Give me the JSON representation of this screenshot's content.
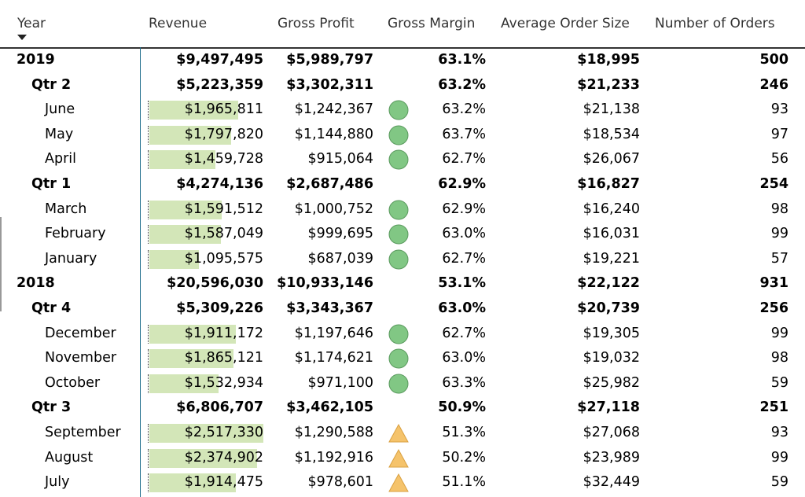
{
  "headers": {
    "year": "Year",
    "revenue": "Revenue",
    "gross_profit": "Gross Profit",
    "gross_margin": "Gross Margin",
    "average_order_size": "Average Order Size",
    "number_of_orders": "Number of Orders"
  },
  "sort_indicator": "sort-descending-icon",
  "colors": {
    "databar": "#d3e6b8",
    "kpi_good": "#81c784",
    "kpi_warning": "#f5c36b",
    "divider": "#1f6e8c"
  },
  "revenue_bar_max": 2517330,
  "rows": [
    {
      "label": "2019",
      "level": 0,
      "bold": true,
      "revenue": "$9,497,495",
      "gross_profit": "$5,989,797",
      "gross_margin": "63.1%",
      "average_order_size": "$18,995",
      "orders": "500"
    },
    {
      "label": "Qtr 2",
      "level": 1,
      "bold": true,
      "revenue": "$5,223,359",
      "gross_profit": "$3,302,311",
      "gross_margin": "63.2%",
      "average_order_size": "$21,233",
      "orders": "246"
    },
    {
      "label": "June",
      "level": 2,
      "bold": false,
      "revenue": "$1,965,811",
      "revenue_value": 1965811,
      "gross_profit": "$1,242,367",
      "kpi": "good-circle-icon",
      "gross_margin": "63.2%",
      "average_order_size": "$21,138",
      "orders": "93"
    },
    {
      "label": "May",
      "level": 2,
      "bold": false,
      "revenue": "$1,797,820",
      "revenue_value": 1797820,
      "gross_profit": "$1,144,880",
      "kpi": "good-circle-icon",
      "gross_margin": "63.7%",
      "average_order_size": "$18,534",
      "orders": "97"
    },
    {
      "label": "April",
      "level": 2,
      "bold": false,
      "revenue": "$1,459,728",
      "revenue_value": 1459728,
      "gross_profit": "$915,064",
      "kpi": "good-circle-icon",
      "gross_margin": "62.7%",
      "average_order_size": "$26,067",
      "orders": "56"
    },
    {
      "label": "Qtr 1",
      "level": 1,
      "bold": true,
      "revenue": "$4,274,136",
      "gross_profit": "$2,687,486",
      "gross_margin": "62.9%",
      "average_order_size": "$16,827",
      "orders": "254"
    },
    {
      "label": "March",
      "level": 2,
      "bold": false,
      "revenue": "$1,591,512",
      "revenue_value": 1591512,
      "gross_profit": "$1,000,752",
      "kpi": "good-circle-icon",
      "gross_margin": "62.9%",
      "average_order_size": "$16,240",
      "orders": "98"
    },
    {
      "label": "February",
      "level": 2,
      "bold": false,
      "revenue": "$1,587,049",
      "revenue_value": 1587049,
      "gross_profit": "$999,695",
      "kpi": "good-circle-icon",
      "gross_margin": "63.0%",
      "average_order_size": "$16,031",
      "orders": "99"
    },
    {
      "label": "January",
      "level": 2,
      "bold": false,
      "revenue": "$1,095,575",
      "revenue_value": 1095575,
      "gross_profit": "$687,039",
      "kpi": "good-circle-icon",
      "gross_margin": "62.7%",
      "average_order_size": "$19,221",
      "orders": "57"
    },
    {
      "label": "2018",
      "level": 0,
      "bold": true,
      "revenue": "$20,596,030",
      "gross_profit": "$10,933,146",
      "gross_margin": "53.1%",
      "average_order_size": "$22,122",
      "orders": "931"
    },
    {
      "label": "Qtr 4",
      "level": 1,
      "bold": true,
      "revenue": "$5,309,226",
      "gross_profit": "$3,343,367",
      "gross_margin": "63.0%",
      "average_order_size": "$20,739",
      "orders": "256"
    },
    {
      "label": "December",
      "level": 2,
      "bold": false,
      "revenue": "$1,911,172",
      "revenue_value": 1911172,
      "gross_profit": "$1,197,646",
      "kpi": "good-circle-icon",
      "gross_margin": "62.7%",
      "average_order_size": "$19,305",
      "orders": "99"
    },
    {
      "label": "November",
      "level": 2,
      "bold": false,
      "revenue": "$1,865,121",
      "revenue_value": 1865121,
      "gross_profit": "$1,174,621",
      "kpi": "good-circle-icon",
      "gross_margin": "63.0%",
      "average_order_size": "$19,032",
      "orders": "98"
    },
    {
      "label": "October",
      "level": 2,
      "bold": false,
      "revenue": "$1,532,934",
      "revenue_value": 1532934,
      "gross_profit": "$971,100",
      "kpi": "good-circle-icon",
      "gross_margin": "63.3%",
      "average_order_size": "$25,982",
      "orders": "59"
    },
    {
      "label": "Qtr 3",
      "level": 1,
      "bold": true,
      "revenue": "$6,806,707",
      "gross_profit": "$3,462,105",
      "gross_margin": "50.9%",
      "average_order_size": "$27,118",
      "orders": "251"
    },
    {
      "label": "September",
      "level": 2,
      "bold": false,
      "revenue": "$2,517,330",
      "revenue_value": 2517330,
      "gross_profit": "$1,290,588",
      "kpi": "warning-triangle-icon",
      "gross_margin": "51.3%",
      "average_order_size": "$27,068",
      "orders": "93"
    },
    {
      "label": "August",
      "level": 2,
      "bold": false,
      "revenue": "$2,374,902",
      "revenue_value": 2374902,
      "gross_profit": "$1,192,916",
      "kpi": "warning-triangle-icon",
      "gross_margin": "50.2%",
      "average_order_size": "$23,989",
      "orders": "99"
    },
    {
      "label": "July",
      "level": 2,
      "bold": false,
      "revenue": "$1,914,475",
      "revenue_value": 1914475,
      "gross_profit": "$978,601",
      "kpi": "warning-triangle-icon",
      "gross_margin": "51.1%",
      "average_order_size": "$32,449",
      "orders": "59"
    }
  ]
}
